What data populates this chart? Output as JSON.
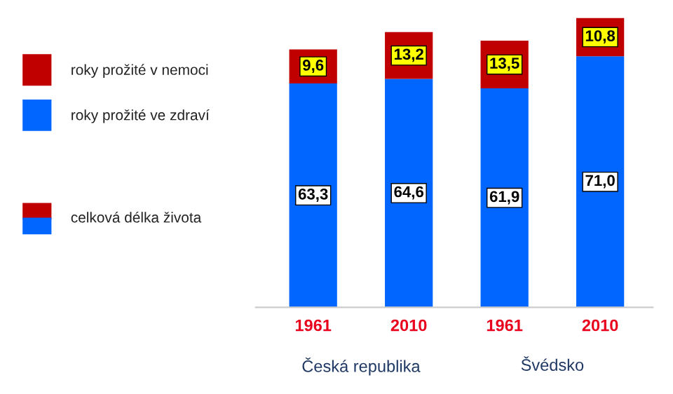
{
  "chart_data": {
    "type": "bar",
    "stacked": true,
    "categories": [
      "1961",
      "2010",
      "1961",
      "2010"
    ],
    "series": [
      {
        "name": "roky prožité ve zdraví",
        "color": "#0066ff",
        "values": [
          63.3,
          64.6,
          61.9,
          71.0
        ],
        "value_labels": [
          "63,3",
          "64,6",
          "61,9",
          "71,0"
        ]
      },
      {
        "name": "roky prožité v nemoci",
        "color": "#c00000",
        "values": [
          9.6,
          13.2,
          13.5,
          10.8
        ],
        "value_labels": [
          "9,6",
          "13,2",
          "13,5",
          "10,8"
        ]
      }
    ],
    "annotations": [
      "celková délka života",
      "Česká republika",
      "Švédsko"
    ],
    "legend": "left",
    "grid": false
  }
}
